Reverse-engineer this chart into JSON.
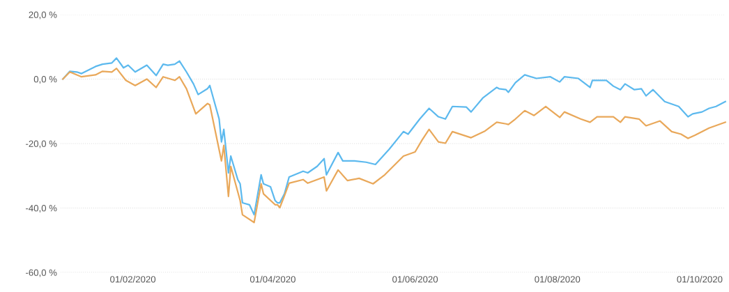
{
  "chart_data": {
    "type": "line",
    "xlim": [
      "2020-01-01",
      "2020-10-12"
    ],
    "xticks": [
      {
        "value": "2020-02-01",
        "label": "01/02/2020"
      },
      {
        "value": "2020-04-01",
        "label": "01/04/2020"
      },
      {
        "value": "2020-06-01",
        "label": "01/06/2020"
      },
      {
        "value": "2020-08-01",
        "label": "01/08/2020"
      },
      {
        "value": "2020-10-01",
        "label": "01/10/2020"
      }
    ],
    "ylim": [
      -60,
      20
    ],
    "yticks": [
      {
        "value": 20,
        "label": "20,0 %"
      },
      {
        "value": 0,
        "label": "0,0 %"
      },
      {
        "value": -20,
        "label": "-20,0 %"
      },
      {
        "value": -40,
        "label": "-40,0 %"
      },
      {
        "value": -60,
        "label": "-60,0 %"
      }
    ],
    "grid": "y",
    "marker": "none",
    "line_style": "solid",
    "series": [
      {
        "color": "#5cb9ee",
        "x": [
          "2020-01-02",
          "2020-01-05",
          "2020-01-08",
          "2020-01-10",
          "2020-01-16",
          "2020-01-19",
          "2020-01-23",
          "2020-01-25",
          "2020-01-28",
          "2020-01-30",
          "2020-02-02",
          "2020-02-07",
          "2020-02-11",
          "2020-02-14",
          "2020-02-16",
          "2020-02-19",
          "2020-02-21",
          "2020-02-24",
          "2020-02-27",
          "2020-02-29",
          "2020-03-04",
          "2020-03-05",
          "2020-03-09",
          "2020-03-10",
          "2020-03-11",
          "2020-03-13",
          "2020-03-14",
          "2020-03-17",
          "2020-03-18",
          "2020-03-19",
          "2020-03-22",
          "2020-03-24",
          "2020-03-27",
          "2020-03-28",
          "2020-03-31",
          "2020-04-02",
          "2020-04-03",
          "2020-04-04",
          "2020-04-06",
          "2020-04-08",
          "2020-04-14",
          "2020-04-16",
          "2020-04-20",
          "2020-04-23",
          "2020-04-24",
          "2020-04-29",
          "2020-05-01",
          "2020-05-06",
          "2020-05-11",
          "2020-05-15",
          "2020-05-21",
          "2020-05-27",
          "2020-05-29",
          "2020-06-03",
          "2020-06-07",
          "2020-06-11",
          "2020-06-14",
          "2020-06-17",
          "2020-06-23",
          "2020-06-25",
          "2020-06-30",
          "2020-07-06",
          "2020-07-07",
          "2020-07-10",
          "2020-07-11",
          "2020-07-14",
          "2020-07-18",
          "2020-07-23",
          "2020-07-29",
          "2020-08-02",
          "2020-08-04",
          "2020-08-10",
          "2020-08-15",
          "2020-08-16",
          "2020-08-22",
          "2020-08-25",
          "2020-08-28",
          "2020-08-30",
          "2020-09-03",
          "2020-09-06",
          "2020-09-08",
          "2020-09-11",
          "2020-09-16",
          "2020-09-22",
          "2020-09-26",
          "2020-09-28",
          "2020-10-02",
          "2020-10-05",
          "2020-10-08",
          "2020-10-12"
        ],
        "values": [
          0,
          2.4,
          2.2,
          1.7,
          3.9,
          4.6,
          5.0,
          6.5,
          3.5,
          4.3,
          2.2,
          4.3,
          1.1,
          4.6,
          4.3,
          4.6,
          5.6,
          2.2,
          -1.5,
          -4.8,
          -3.0,
          -2.0,
          -12.4,
          -19.5,
          -15.6,
          -29.1,
          -23.9,
          -31.2,
          -32.5,
          -38.4,
          -39.0,
          -42.1,
          -29.7,
          -32.5,
          -33.4,
          -37.7,
          -38.4,
          -38.4,
          -35.6,
          -30.4,
          -28.6,
          -29.1,
          -27.1,
          -24.7,
          -29.7,
          -22.8,
          -25.4,
          -25.4,
          -25.8,
          -26.5,
          -21.7,
          -16.3,
          -17.1,
          -12.4,
          -9.1,
          -11.7,
          -12.4,
          -8.5,
          -8.7,
          -10.2,
          -5.9,
          -2.6,
          -3.0,
          -3.3,
          -4.1,
          -1.1,
          1.3,
          0.2,
          0.7,
          -0.9,
          0.7,
          0.2,
          -2.6,
          -0.4,
          -0.4,
          -2.2,
          -3.3,
          -1.5,
          -3.3,
          -3.0,
          -5.2,
          -3.3,
          -7.0,
          -8.5,
          -11.7,
          -10.8,
          -10.2,
          -9.1,
          -8.5,
          -7.0
        ]
      },
      {
        "color": "#e9a85a",
        "x": [
          "2020-01-02",
          "2020-01-05",
          "2020-01-10",
          "2020-01-16",
          "2020-01-19",
          "2020-01-23",
          "2020-01-25",
          "2020-01-29",
          "2020-02-02",
          "2020-02-07",
          "2020-02-11",
          "2020-02-14",
          "2020-02-19",
          "2020-02-21",
          "2020-02-24",
          "2020-02-28",
          "2020-03-04",
          "2020-03-05",
          "2020-03-10",
          "2020-03-11",
          "2020-03-13",
          "2020-03-14",
          "2020-03-18",
          "2020-03-19",
          "2020-03-24",
          "2020-03-27",
          "2020-03-28",
          "2020-04-02",
          "2020-04-03",
          "2020-04-04",
          "2020-04-06",
          "2020-04-08",
          "2020-04-14",
          "2020-04-16",
          "2020-04-23",
          "2020-04-24",
          "2020-04-29",
          "2020-05-03",
          "2020-05-08",
          "2020-05-14",
          "2020-05-19",
          "2020-05-27",
          "2020-06-01",
          "2020-06-04",
          "2020-06-07",
          "2020-06-11",
          "2020-06-14",
          "2020-06-17",
          "2020-06-25",
          "2020-07-01",
          "2020-07-06",
          "2020-07-10",
          "2020-07-11",
          "2020-07-14",
          "2020-07-18",
          "2020-07-22",
          "2020-07-27",
          "2020-08-02",
          "2020-08-04",
          "2020-08-11",
          "2020-08-15",
          "2020-08-18",
          "2020-08-25",
          "2020-08-28",
          "2020-08-30",
          "2020-09-05",
          "2020-09-08",
          "2020-09-14",
          "2020-09-19",
          "2020-09-23",
          "2020-09-26",
          "2020-09-29",
          "2020-10-05",
          "2020-10-12"
        ],
        "values": [
          0,
          2.2,
          0.7,
          1.3,
          2.4,
          2.2,
          3.3,
          -0.4,
          -2.0,
          0,
          -2.6,
          0.7,
          -0.4,
          0.7,
          -3.0,
          -10.8,
          -7.6,
          -8.0,
          -25.4,
          -20.6,
          -36.4,
          -27.1,
          -37.7,
          -42.1,
          -44.5,
          -32.5,
          -35.6,
          -39.0,
          -39.0,
          -39.9,
          -36.2,
          -32.3,
          -31.2,
          -32.3,
          -30.4,
          -34.7,
          -28.2,
          -31.5,
          -30.8,
          -32.5,
          -29.7,
          -23.9,
          -22.6,
          -18.9,
          -15.6,
          -19.5,
          -19.9,
          -16.3,
          -18.2,
          -16.1,
          -13.4,
          -13.9,
          -14.1,
          -12.4,
          -9.8,
          -11.3,
          -8.5,
          -11.9,
          -10.2,
          -12.4,
          -13.4,
          -11.7,
          -11.7,
          -13.4,
          -11.7,
          -12.4,
          -14.5,
          -13.0,
          -16.3,
          -17.1,
          -18.4,
          -17.4,
          -15.2,
          -13.4
        ]
      }
    ]
  }
}
